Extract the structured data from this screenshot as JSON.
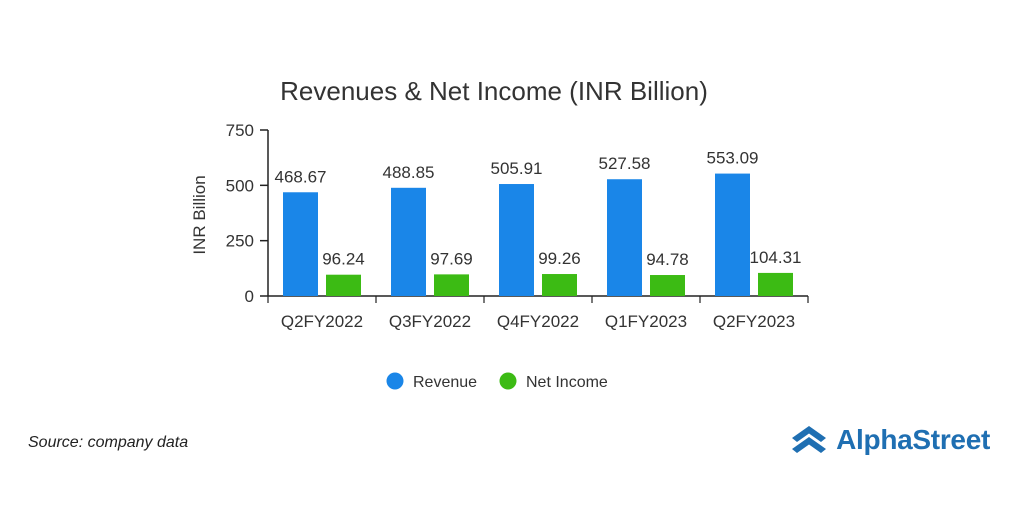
{
  "chart_data": {
    "type": "bar",
    "title": "Revenues & Net Income (INR Billion)",
    "xlabel": "",
    "ylabel": "INR Billion",
    "ylim": [
      0,
      750
    ],
    "yticks": [
      0,
      250,
      500,
      750
    ],
    "categories": [
      "Q2FY2022",
      "Q3FY2022",
      "Q4FY2022",
      "Q1FY2023",
      "Q2FY2023"
    ],
    "series": [
      {
        "name": "Revenue",
        "color": "#1a86e8",
        "values": [
          468.67,
          488.85,
          505.91,
          527.58,
          553.09
        ],
        "labels": [
          "468.67",
          "488.85",
          "505.91",
          "527.58",
          "553.09"
        ]
      },
      {
        "name": "Net Income",
        "color": "#3cbb14",
        "values": [
          96.24,
          97.69,
          99.26,
          94.78,
          104.31
        ],
        "labels": [
          "96.24",
          "97.69",
          "99.26",
          "94.78",
          "104.31"
        ]
      }
    ],
    "grid": false,
    "legend_position": "bottom"
  },
  "footer": {
    "source": "Source: company data",
    "brand": "AlphaStreet",
    "brand_color": "#1f6fb2",
    "logo_icon": "alphastreet-logo-icon"
  }
}
